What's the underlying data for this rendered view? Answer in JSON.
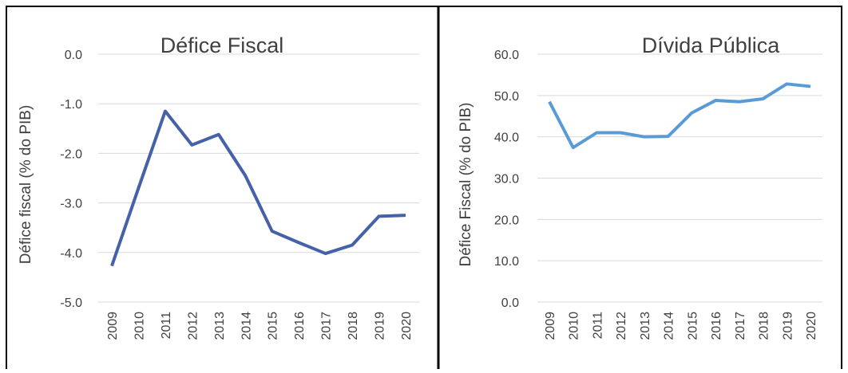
{
  "chart_data": [
    {
      "type": "line",
      "title": "Défice Fiscal",
      "y_label": "Défice fiscal (% do PIB)",
      "categories": [
        "2009",
        "2010",
        "2011",
        "2012",
        "2013",
        "2014",
        "2015",
        "2016",
        "2017",
        "2018",
        "2019",
        "2020"
      ],
      "series": [
        {
          "name": "Défice Fiscal",
          "color": "#4561a8",
          "values": [
            -4.27,
            -2.7,
            -1.15,
            -1.83,
            -1.62,
            -2.45,
            -3.57,
            -3.8,
            -4.02,
            -3.85,
            -3.27,
            -3.25
          ]
        }
      ],
      "ylim": [
        -5,
        0
      ],
      "yticks": [
        {
          "value": 0,
          "label": "0.0"
        },
        {
          "value": -1,
          "label": "-1.0"
        },
        {
          "value": -2,
          "label": "-2.0"
        },
        {
          "value": -3,
          "label": "-3.0"
        },
        {
          "value": -4,
          "label": "-4.0"
        },
        {
          "value": -5,
          "label": "-5.0"
        }
      ],
      "grid": true
    },
    {
      "type": "line",
      "title": "Dívida Pública",
      "y_label": "Défice Fiscal (% do PIB)",
      "categories": [
        "2009",
        "2010",
        "2011",
        "2012",
        "2013",
        "2014",
        "2015",
        "2016",
        "2017",
        "2018",
        "2019",
        "2020"
      ],
      "series": [
        {
          "name": "Dívida Pública",
          "color": "#5b9bd5",
          "values": [
            48.5,
            37.4,
            41,
            41,
            40,
            40.1,
            45.8,
            48.8,
            48.5,
            49.2,
            52.8,
            52.2
          ]
        }
      ],
      "ylim": [
        0,
        60
      ],
      "yticks": [
        {
          "value": 0,
          "label": "0.0"
        },
        {
          "value": 10,
          "label": "10.0"
        },
        {
          "value": 20,
          "label": "20.0"
        },
        {
          "value": 30,
          "label": "30.0"
        },
        {
          "value": 40,
          "label": "40.0"
        },
        {
          "value": 50,
          "label": "50.0"
        },
        {
          "value": 60,
          "label": "60.0"
        }
      ],
      "grid": true
    }
  ]
}
